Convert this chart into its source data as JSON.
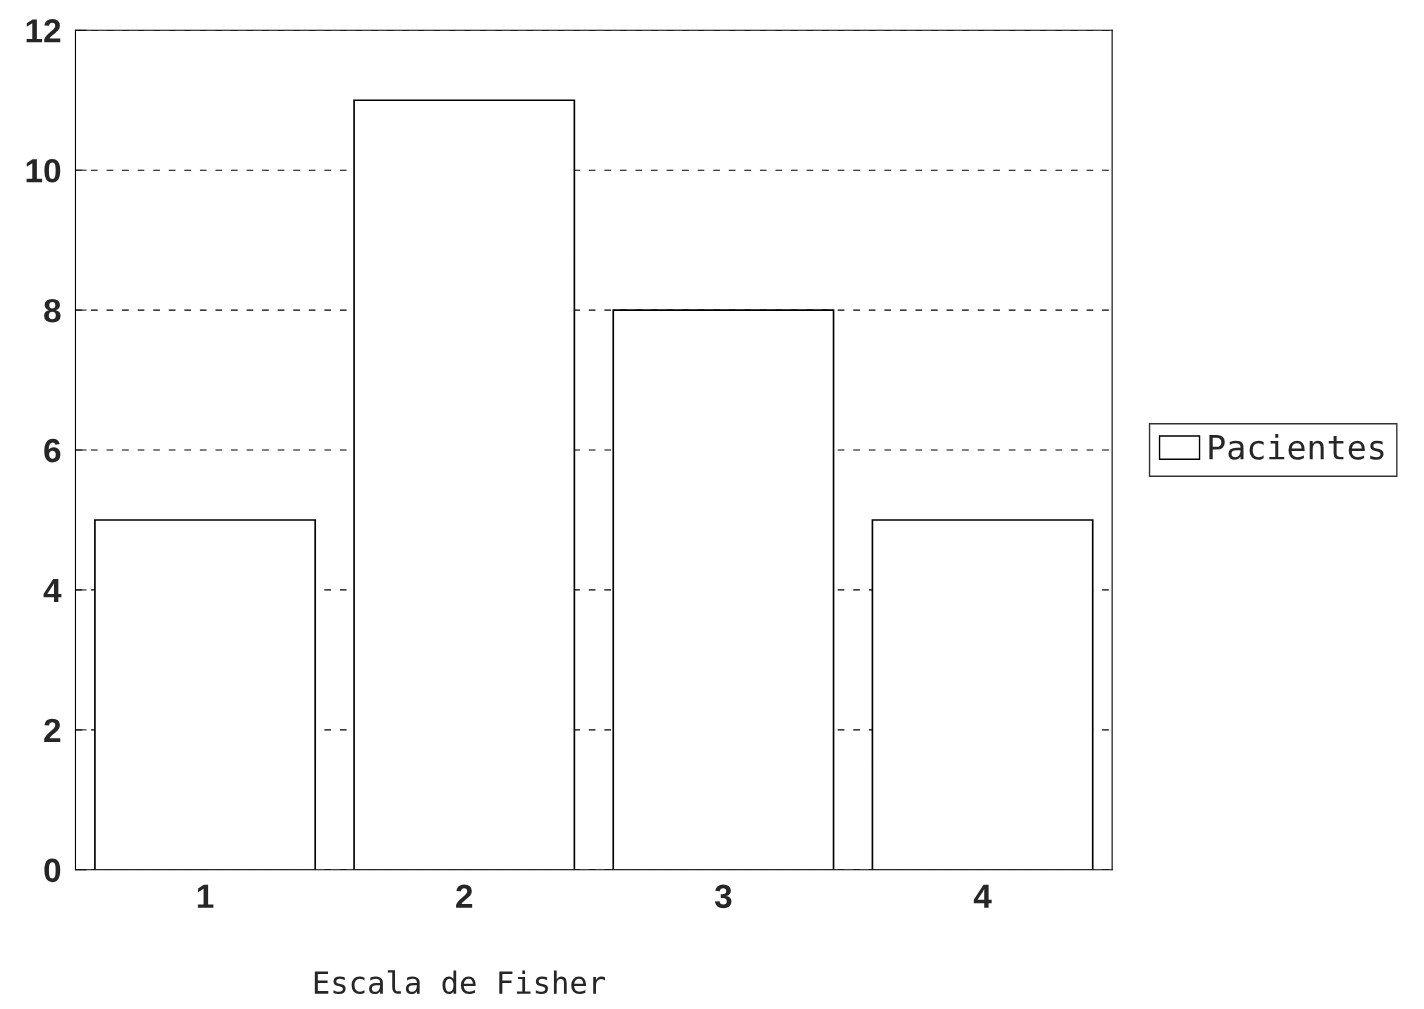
{
  "chart_data": {
    "type": "bar",
    "xlabel": "Escala de Fisher",
    "categories": [
      "1",
      "2",
      "3",
      "4"
    ],
    "series": [
      {
        "name": "Pacientes",
        "color": "#ffffff",
        "values": [
          5,
          11,
          8,
          5
        ]
      }
    ],
    "ylim": [
      0,
      12
    ],
    "yticks": [
      0,
      2,
      4,
      6,
      8,
      10,
      12
    ],
    "grid": "y",
    "legend": "right"
  }
}
